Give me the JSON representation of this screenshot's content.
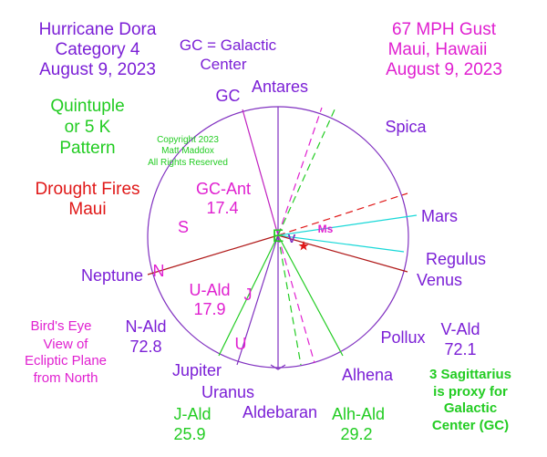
{
  "texts": {
    "title_line1": "Hurricane Dora",
    "title_line2": "Category 4",
    "title_line3": "August 9, 2023",
    "gust_line1": "67 MPH Gust",
    "gust_line2": "Maui, Hawaii",
    "gust_line3": "August 9, 2023",
    "gc_def_line1": "GC = Galactic",
    "gc_def_line2": "Center",
    "quint_line1": "Quintuple",
    "quint_line2": "or 5 K",
    "quint_line3": "Pattern",
    "copyright_line1": "Copyright 2023",
    "copyright_line2": "Matt Maddox",
    "copyright_line3": "All Rights Reserved",
    "drought_line1": "Drought Fires",
    "drought_line2": "Maui",
    "gc_ant_line1": "GC-Ant",
    "gc_ant_line2": "17.4",
    "u_ald_line1": "U-Ald",
    "u_ald_line2": "17.9",
    "n_ald_line1": "N-Ald",
    "n_ald_line2": "72.8",
    "v_ald_line1": "V-Ald",
    "v_ald_line2": "72.1",
    "j_ald_line1": "J-Ald",
    "j_ald_line2": "25.9",
    "alh_ald_line1": "Alh-Ald",
    "alh_ald_line2": "29.2",
    "birds_line1": "Bird's Eye",
    "birds_line2": "View of",
    "birds_line3": "Ecliptic Plane",
    "birds_line4": "from North",
    "sag_line1": "3 Sagittarius",
    "sag_line2": "is proxy for",
    "sag_line3": "Galactic",
    "sag_line4": "Center (GC)"
  },
  "bodies": {
    "gc": "GC",
    "antares": "Antares",
    "spica": "Spica",
    "mars": "Mars",
    "regulus": "Regulus",
    "venus": "Venus",
    "pollux": "Pollux",
    "alhena": "Alhena",
    "aldebaran": "Aldebaran",
    "uranus": "Uranus",
    "jupiter": "Jupiter",
    "neptune": "Neptune"
  },
  "markers": {
    "earth": "E",
    "sun": "S",
    "neptune": "N",
    "jupiter": "J",
    "uranus": "U",
    "venus": "V",
    "mercury": "Ms"
  },
  "colors": {
    "purple": "#7b1fd6",
    "magenta": "#e020d0",
    "green": "#22cc22",
    "red": "#e01818",
    "darkred": "#b01818",
    "cyan": "#18d8d8",
    "circle": "#8030c0",
    "earth": "#22cc22"
  }
}
